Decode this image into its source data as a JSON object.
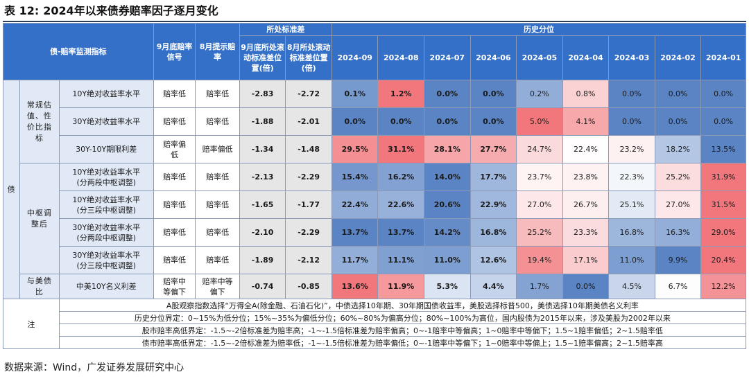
{
  "title": {
    "prefix": "表 12:",
    "text": "2024年以来债券赔率因子逐月变化"
  },
  "header": {
    "indicator": "债-赔率监测指标",
    "signal": "9月底赔率信号",
    "hint": "8月提示赔率",
    "group_std": "所处标准差",
    "sep_pos": "9月底所处滚动标准差位置(倍)",
    "aug_pos": "8月所处滚动标准差位置(倍)",
    "group_hist": "历史分位",
    "months": [
      "2024-09",
      "2024-08",
      "2024-07",
      "2024-06",
      "2024-05",
      "2024-04",
      "2024-03",
      "2024-02",
      "2024-01"
    ]
  },
  "side_label": "债",
  "groups": [
    {
      "label": "常规估值、性价比指标"
    },
    {
      "label": "中枢调整后"
    },
    {
      "label": "与美债比"
    }
  ],
  "rows": [
    {
      "label": "10Y绝对收益率水平",
      "signal": "赔率低",
      "hint": "赔率低",
      "sep": "-2.83",
      "aug": "-2.72",
      "values": [
        "0.1%",
        "1.2%",
        "0.0%",
        "0.0%",
        "0.2%",
        "0.8%",
        "0.0%",
        "0.0%",
        "0.0%"
      ]
    },
    {
      "label": "30Y绝对收益率水平",
      "signal": "赔率低",
      "hint": "赔率低",
      "sep": "-1.88",
      "aug": "-2.01",
      "values": [
        "0.0%",
        "0.0%",
        "0.0%",
        "0.0%",
        "5.0%",
        "4.1%",
        "0.0%",
        "0.0%",
        "0.0%"
      ]
    },
    {
      "label": "30Y-10Y期限利差",
      "signal": "赔率偏低",
      "hint": "赔率偏低",
      "sep": "-1.34",
      "aug": "-1.48",
      "values": [
        "29.5%",
        "31.1%",
        "28.1%",
        "27.7%",
        "24.7%",
        "22.4%",
        "23.2%",
        "18.2%",
        "13.5%"
      ]
    },
    {
      "label": "10Y绝对收益率水平(分两段中枢调整)",
      "signal": "赔率低",
      "hint": "赔率低",
      "sep": "-2.13",
      "aug": "-2.29",
      "values": [
        "15.4%",
        "16.2%",
        "14.0%",
        "17.7%",
        "23.7%",
        "23.8%",
        "22.3%",
        "25.2%",
        "31.9%"
      ]
    },
    {
      "label": "10Y绝对收益率水平(分三段中枢调整)",
      "signal": "赔率低",
      "hint": "赔率低",
      "sep": "-1.65",
      "aug": "-1.77",
      "values": [
        "22.4%",
        "22.6%",
        "20.6%",
        "22.9%",
        "27.0%",
        "26.7%",
        "25.1%",
        "27.0%",
        "31.5%"
      ]
    },
    {
      "label": "30Y绝对收益率水平(分两段中枢调整)",
      "signal": "赔率低",
      "hint": "赔率低",
      "sep": "-2.10",
      "aug": "-2.29",
      "values": [
        "13.7%",
        "13.7%",
        "14.2%",
        "16.8%",
        "25.2%",
        "23.3%",
        "16.8%",
        "16.3%",
        "29.0%"
      ]
    },
    {
      "label": "30Y绝对收益率水平(分三段中枢调整)",
      "signal": "赔率低",
      "hint": "赔率低",
      "sep": "-1.89",
      "aug": "-2.12",
      "values": [
        "11.7%",
        "11.1%",
        "11.0%",
        "12.6%",
        "19.4%",
        "17.1%",
        "11.0%",
        "9.9%",
        "20.4%"
      ]
    },
    {
      "label": "中美10Y名义利差",
      "signal": "赔率中等偏下",
      "hint": "赔率中等偏下",
      "sep": "-0.74",
      "aug": "-0.85",
      "values": [
        "13.6%",
        "11.9%",
        "5.3%",
        "4.4%",
        "1.7%",
        "0.0%",
        "4.5%",
        "6.7%",
        "12.2%"
      ]
    }
  ],
  "notes": {
    "label": "注",
    "lines": [
      "A股观察指数选择“万得全A(除金融、石油石化)”，中债选择10年期、30年期国债收益率，美股选择标普500，美债选择10年期美债名义利率",
      "历史分位界定：0~15%为低分位；15%~35%为偏低分位；60%~80%为偏高分位；80%~100%为高位，国内股债为2015年以来，涉及美股为2002年以来",
      "股市赔率高低界定：-1.5~-2倍标准差为赔率高；-1~-1.5倍标准差为赔率偏高；0~-1赔率中等偏高；1~0赔率中等偏下；1.5~1赔率偏低；2~1.5赔率低",
      "债市赔率高低界定：-1.5~-2倍标准差为赔率低；-1~-1.5倍标准差为赔率偏低；0~-1赔率中等偏下；1~0赔率中等偏上；1.5~1赔率偏高；2~1.5赔率高"
    ]
  },
  "source": "数据来源：Wind，广发证券发展研究中心",
  "colors": {
    "header_bg": "#3470c7",
    "label_bg": "#e1e9f6",
    "value_bg": "#e6e6e6",
    "low_blue": "#5b84c4",
    "high_red": "#f1777c"
  }
}
